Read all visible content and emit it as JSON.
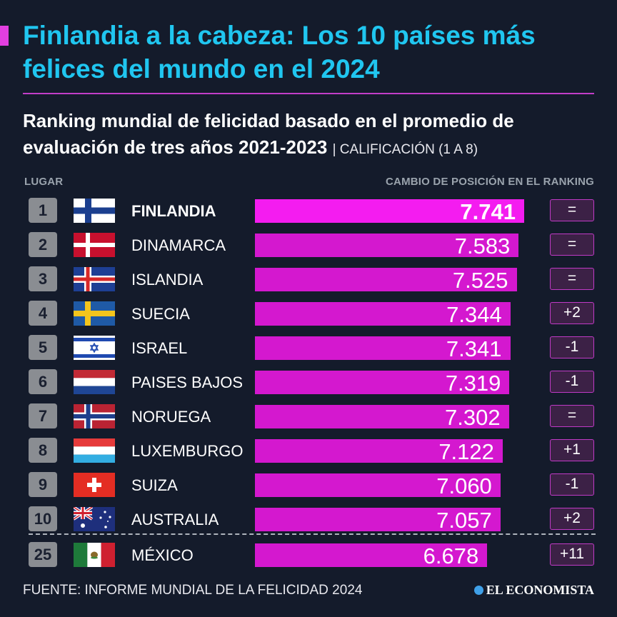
{
  "header": {
    "title": "Finlandia a la cabeza: Los 10 países más felices del mundo en el 2024",
    "subtitle": "Ranking mundial de felicidad basado en el promedio de evaluación de tres años 2021-2023",
    "subtitle_note": "| CALIFICACIÓN (1 A 8)"
  },
  "columns": {
    "rank_label": "LUGAR",
    "change_label": "CAMBIO DE POSICIÓN EN EL RANKING"
  },
  "chart_data": {
    "type": "bar",
    "orientation": "horizontal",
    "title": "Ranking mundial de felicidad basado en el promedio de evaluación de tres años 2021-2023",
    "scale_note": "CALIFICACIÓN (1 A 8)",
    "categories": [
      "FINLANDIA",
      "DINAMARCA",
      "ISLANDIA",
      "SUECIA",
      "ISRAEL",
      "PAISES BAJOS",
      "NORUEGA",
      "LUXEMBURGO",
      "SUIZA",
      "AUSTRALIA",
      "MÉXICO"
    ],
    "ranks": [
      "1",
      "2",
      "3",
      "4",
      "5",
      "6",
      "7",
      "8",
      "9",
      "10",
      "25"
    ],
    "values": [
      7.741,
      7.583,
      7.525,
      7.344,
      7.341,
      7.319,
      7.302,
      7.122,
      7.06,
      7.057,
      6.678
    ],
    "value_labels": [
      "7.741",
      "7.583",
      "7.525",
      "7.344",
      "7.341",
      "7.319",
      "7.302",
      "7.122",
      "7.060",
      "7.057",
      "6.678"
    ],
    "rank_changes": [
      "=",
      "=",
      "=",
      "+2",
      "-1",
      "-1",
      "=",
      "+1",
      "-1",
      "+2",
      "+11"
    ],
    "flag_icons": [
      "finland-flag-icon",
      "denmark-flag-icon",
      "iceland-flag-icon",
      "sweden-flag-icon",
      "israel-flag-icon",
      "netherlands-flag-icon",
      "norway-flag-icon",
      "luxembourg-flag-icon",
      "switzerland-flag-icon",
      "australia-flag-icon",
      "mexico-flag-icon"
    ],
    "highlighted": "FINLANDIA",
    "bar_color": "#d418cf",
    "highlight_bar_color": "#f41cf0"
  },
  "footer": {
    "source": "FUENTE: INFORME MUNDIAL DE LA FELICIDAD 2024",
    "brand": "EL ECONOMISTA"
  },
  "colors": {
    "background": "#141b2b",
    "title": "#20c6f0",
    "accent": "#e23fe0"
  }
}
